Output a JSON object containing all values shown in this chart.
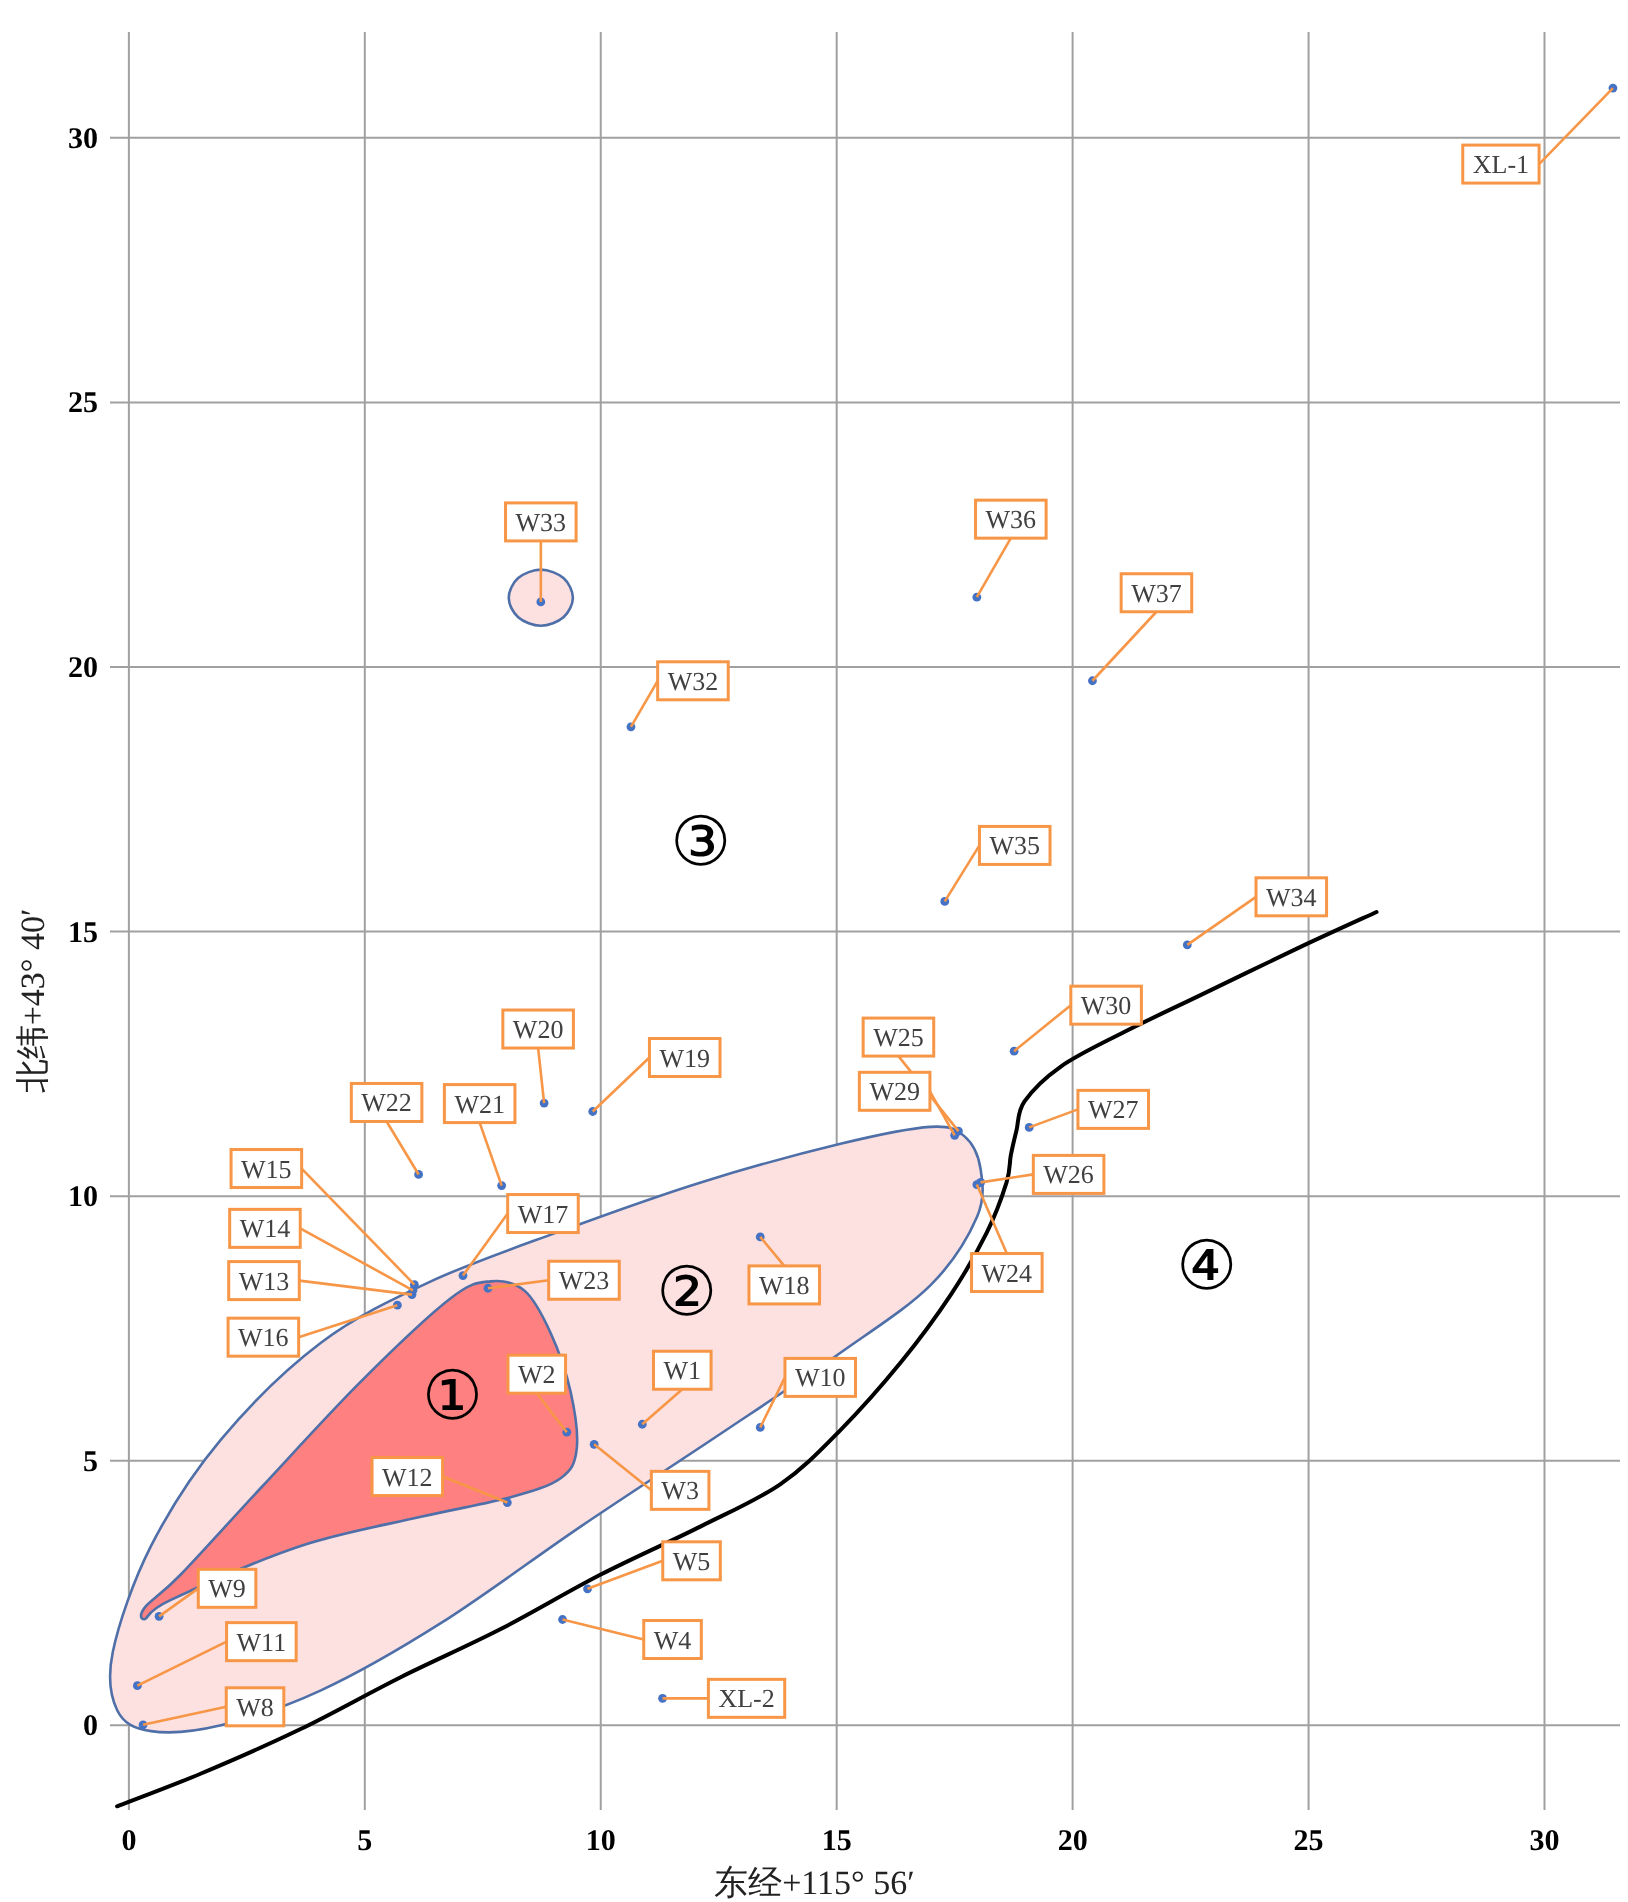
{
  "chart_data": {
    "type": "scatter",
    "xlabel": "东经+115° 56′",
    "ylabel": "北纬+43° 40′",
    "xlim": [
      -0.4,
      31.6
    ],
    "ylim": [
      -1.6,
      32
    ],
    "xticks": [
      0,
      5,
      10,
      15,
      20,
      25,
      30
    ],
    "yticks": [
      0,
      5,
      10,
      15,
      20,
      25,
      30
    ],
    "grid": true,
    "series": [
      {
        "type": "area",
        "color": "#fde0e0",
        "x": [
          0.47,
          1.95,
          4.07,
          6.61,
          9.58,
          12.54,
          15.08,
          16.99,
          17.97,
          18.05,
          17.71,
          16.99,
          15.08,
          12.12,
          9.15,
          6.4,
          4.07,
          1.95,
          0.47,
          -0.34,
          -0.25
        ],
        "values": [
          -0.11,
          0,
          0.66,
          1.93,
          3.76,
          5.51,
          7.04,
          8.32,
          9.6,
          10.51,
          11.13,
          11.31,
          10.99,
          10.26,
          9.34,
          8.39,
          7.23,
          5.4,
          3.39,
          1.39,
          0.29
        ]
      },
      {
        "type": "area",
        "color": "#ff8080",
        "x": [
          0.34,
          0.89,
          3.64,
          6.19,
          8.09,
          9.15,
          9.49,
          9.36,
          8.94,
          8.39,
          7.67,
          6.82,
          4.92,
          2.8,
          1.1,
          0.34
        ],
        "values": [
          2.01,
          2.37,
          3.39,
          3.94,
          4.31,
          4.67,
          5.22,
          6.31,
          7.41,
          8.21,
          8.39,
          8.07,
          6.5,
          4.49,
          2.85,
          2.23
        ]
      },
      {
        "type": "area",
        "color": "#fde0e0",
        "x": [
          9.41,
          9.21,
          8.73,
          8.25,
          8.05,
          8.25,
          8.73,
          9.21
        ],
        "values": [
          21.31,
          21.68,
          21.84,
          21.68,
          21.31,
          20.94,
          20.78,
          20.94
        ]
      },
      {
        "type": "line",
        "color": "#000000",
        "x": [
          -0.25,
          1.53,
          3.64,
          5.76,
          7.88,
          10,
          12.12,
          13.81,
          15.08,
          16.36,
          17.42,
          18.18,
          18.6,
          18.69,
          18.81,
          18.98,
          19.75,
          21.02,
          22.71,
          24.83,
          26.44
        ],
        "values": [
          -1.53,
          -0.91,
          -0.07,
          0.91,
          1.82,
          2.85,
          3.76,
          4.56,
          5.58,
          6.86,
          8.14,
          9.31,
          10.26,
          10.77,
          11.24,
          11.79,
          12.45,
          13.07,
          13.8,
          14.71,
          15.37
        ]
      },
      {
        "type": "scatter",
        "marker": "circle",
        "color": "#4472c4",
        "x": [
          10.88,
          9.28,
          9.86,
          9.19,
          9.72,
          0.3,
          0.64,
          13.38,
          0.18,
          8.02,
          6.0,
          6.02,
          6.05,
          5.69,
          7.08,
          13.38,
          9.83,
          8.8,
          7.9,
          6.14,
          7.61,
          17.97,
          17.58,
          18.05,
          19.08,
          17.5,
          18.76,
          10.64,
          8.73,
          22.43,
          17.29,
          17.97,
          20.42,
          31.45,
          11.31
        ],
        "values": [
          5.69,
          5.54,
          5.31,
          2.0,
          2.58,
          0.01,
          2.06,
          5.63,
          0.75,
          4.21,
          8.14,
          8.22,
          8.33,
          7.94,
          8.5,
          9.23,
          11.6,
          11.76,
          10.2,
          10.41,
          8.26,
          10.22,
          11.23,
          10.26,
          11.3,
          11.15,
          12.74,
          18.87,
          21.23,
          14.75,
          15.57,
          21.32,
          19.74,
          30.94,
          0.51
        ]
      }
    ],
    "annotations": [
      {
        "text": "W1",
        "x": 10.88,
        "y": 5.69
      },
      {
        "text": "W2",
        "x": 9.28,
        "y": 5.54
      },
      {
        "text": "W3",
        "x": 9.86,
        "y": 5.31
      },
      {
        "text": "W4",
        "x": 9.19,
        "y": 2.0
      },
      {
        "text": "W5",
        "x": 9.72,
        "y": 2.58
      },
      {
        "text": "W8",
        "x": 0.3,
        "y": 0.01
      },
      {
        "text": "W9",
        "x": 0.64,
        "y": 2.06
      },
      {
        "text": "W10",
        "x": 13.38,
        "y": 5.63
      },
      {
        "text": "W11",
        "x": 0.18,
        "y": 0.75
      },
      {
        "text": "W12",
        "x": 8.02,
        "y": 4.21
      },
      {
        "text": "W13",
        "x": 6.0,
        "y": 8.14
      },
      {
        "text": "W14",
        "x": 6.02,
        "y": 8.22
      },
      {
        "text": "W15",
        "x": 6.05,
        "y": 8.33
      },
      {
        "text": "W16",
        "x": 5.69,
        "y": 7.94
      },
      {
        "text": "W17",
        "x": 7.08,
        "y": 8.5
      },
      {
        "text": "W18",
        "x": 13.38,
        "y": 9.23
      },
      {
        "text": "W19",
        "x": 9.83,
        "y": 11.6
      },
      {
        "text": "W20",
        "x": 8.8,
        "y": 11.76
      },
      {
        "text": "W21",
        "x": 7.9,
        "y": 10.2
      },
      {
        "text": "W22",
        "x": 6.14,
        "y": 10.41
      },
      {
        "text": "W23",
        "x": 7.61,
        "y": 8.26
      },
      {
        "text": "W24",
        "x": 17.97,
        "y": 10.22
      },
      {
        "text": "W25",
        "x": 17.58,
        "y": 11.23
      },
      {
        "text": "W26",
        "x": 18.05,
        "y": 10.26
      },
      {
        "text": "W27",
        "x": 19.08,
        "y": 11.3
      },
      {
        "text": "W29",
        "x": 17.5,
        "y": 11.15
      },
      {
        "text": "W30",
        "x": 18.76,
        "y": 12.74
      },
      {
        "text": "W32",
        "x": 10.64,
        "y": 18.87
      },
      {
        "text": "W33",
        "x": 8.73,
        "y": 21.23
      },
      {
        "text": "W34",
        "x": 22.43,
        "y": 14.75
      },
      {
        "text": "W35",
        "x": 17.29,
        "y": 15.57
      },
      {
        "text": "W36",
        "x": 17.97,
        "y": 21.32
      },
      {
        "text": "W37",
        "x": 20.42,
        "y": 19.74
      },
      {
        "text": "XL-1",
        "x": 31.45,
        "y": 30.94
      },
      {
        "text": "XL-2",
        "x": 11.31,
        "y": 0.51
      },
      "①",
      "②",
      "③",
      "④"
    ]
  }
}
